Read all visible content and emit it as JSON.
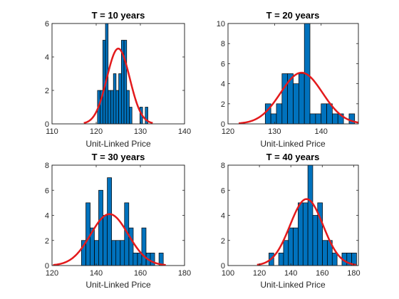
{
  "colors": {
    "bar": "#0072BD",
    "fit": "#E31A1C"
  },
  "chart_data": [
    {
      "type": "bar",
      "title": "T = 10 years",
      "xlabel": "Unit-Linked Price",
      "ylabel": "",
      "xlim": [
        110,
        140
      ],
      "ylim": [
        0,
        6
      ],
      "xticks": [
        110,
        120,
        130,
        140
      ],
      "yticks": [
        0,
        2,
        4,
        6
      ],
      "bin_width": 0.6,
      "bin_centers": [
        120.6,
        121.2,
        121.8,
        122.4,
        123.0,
        123.6,
        124.2,
        124.8,
        125.4,
        126.0,
        126.6,
        127.2,
        127.8,
        128.4,
        129.0,
        129.6,
        130.2,
        130.8,
        131.4
      ],
      "values": [
        2,
        2,
        5,
        6,
        2,
        2,
        3,
        2,
        3,
        5,
        5,
        2,
        1,
        0,
        0,
        0,
        1,
        0,
        1
      ],
      "fit": {
        "name": "Normal fit",
        "mean": 125,
        "peak": 4.5,
        "sigma": 2.6
      },
      "grid": false
    },
    {
      "type": "bar",
      "title": "T = 20 years",
      "xlabel": "Unit-Linked Price",
      "ylabel": "",
      "xlim": [
        120,
        148
      ],
      "ylim": [
        0,
        10
      ],
      "xticks": [
        120,
        130,
        140
      ],
      "yticks": [
        0,
        2,
        4,
        6,
        8,
        10
      ],
      "bin_width": 1.2,
      "bin_centers": [
        128.6,
        129.8,
        131.0,
        132.2,
        133.4,
        134.6,
        135.8,
        137.0,
        138.2,
        139.4,
        140.6,
        141.8,
        143.0,
        144.2,
        145.4,
        146.6
      ],
      "values": [
        2,
        1,
        2,
        5,
        5,
        4,
        5,
        10,
        1,
        1,
        2,
        2,
        1,
        1,
        0,
        1
      ],
      "fit": {
        "name": "Normal fit",
        "mean": 135.8,
        "peak": 5.1,
        "sigma": 4.5
      },
      "grid": false
    },
    {
      "type": "bar",
      "title": "T = 30 years",
      "xlabel": "Unit-Linked Price",
      "ylabel": "",
      "xlim": [
        120,
        180
      ],
      "ylim": [
        0,
        8
      ],
      "xticks": [
        120,
        140,
        160,
        180
      ],
      "yticks": [
        0,
        2,
        4,
        6,
        8
      ],
      "bin_width": 1.95,
      "bin_centers": [
        134.3,
        136.3,
        138.2,
        140.2,
        142.1,
        144.1,
        146.0,
        148.0,
        149.9,
        151.9,
        153.8,
        155.8,
        157.7,
        159.7,
        161.6,
        163.6,
        165.5,
        167.5,
        169.4
      ],
      "values": [
        2,
        5,
        3,
        2,
        6,
        4,
        7,
        2,
        2,
        2,
        5,
        3,
        1,
        1,
        3,
        1,
        1,
        0,
        1
      ],
      "fit": {
        "name": "Normal fit",
        "mean": 146,
        "peak": 4.1,
        "sigma": 8.5
      },
      "grid": false
    },
    {
      "type": "bar",
      "title": "T = 40 years",
      "xlabel": "Unit-Linked Price",
      "ylabel": "",
      "xlim": [
        100,
        183
      ],
      "ylim": [
        0,
        8
      ],
      "xticks": [
        100,
        120,
        140,
        160,
        180
      ],
      "yticks": [
        0,
        2,
        4,
        6,
        8
      ],
      "bin_width": 3.1,
      "bin_centers": [
        127.6,
        130.7,
        133.8,
        136.9,
        140.0,
        143.1,
        146.2,
        149.3,
        152.4,
        155.5,
        158.6,
        161.7,
        164.8,
        167.9,
        171.0,
        174.1,
        177.2,
        180.3
      ],
      "values": [
        1,
        0,
        1,
        2,
        3,
        3,
        5,
        5,
        8,
        4,
        5,
        2,
        2,
        1,
        0,
        1,
        1,
        1
      ],
      "fit": {
        "name": "Normal fit",
        "mean": 150,
        "peak": 5.3,
        "sigma": 10.5
      },
      "grid": false
    }
  ]
}
